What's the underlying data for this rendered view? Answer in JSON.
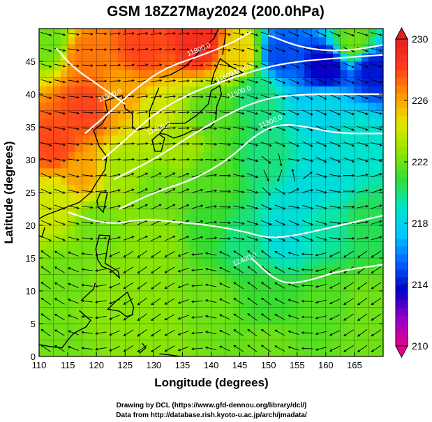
{
  "chart_data": {
    "type": "heatmap",
    "title": "GSM 18Z27May2024 (200.0hPa)",
    "xlabel": "Longitude (degrees)",
    "ylabel": "Latitude  (degrees)",
    "xlim": [
      110,
      170
    ],
    "ylim": [
      0,
      50
    ],
    "xticks": [
      110,
      115,
      120,
      125,
      130,
      135,
      140,
      145,
      150,
      155,
      160,
      165
    ],
    "yticks": [
      0,
      5,
      10,
      15,
      20,
      25,
      30,
      35,
      40,
      45
    ],
    "grid": true,
    "colorbar": {
      "range": [
        210,
        230
      ],
      "ticks": [
        210,
        214,
        218,
        222,
        226,
        230
      ],
      "colors": [
        "#e8008c",
        "#9400c8",
        "#0000c8",
        "#0064ff",
        "#00c8ff",
        "#00e6c8",
        "#32dc32",
        "#96e600",
        "#e6e600",
        "#ff9600",
        "#ff3c1e",
        "#e61e1e"
      ],
      "placement": "right"
    },
    "field_samples": [
      {
        "lon": 112,
        "lat": 48,
        "value": 222
      },
      {
        "lon": 118,
        "lat": 46,
        "value": 227
      },
      {
        "lon": 128,
        "lat": 47,
        "value": 228
      },
      {
        "lon": 138,
        "lat": 48,
        "value": 229
      },
      {
        "lon": 145,
        "lat": 46,
        "value": 225
      },
      {
        "lon": 152,
        "lat": 46,
        "value": 215
      },
      {
        "lon": 160,
        "lat": 44,
        "value": 213.5
      },
      {
        "lon": 168,
        "lat": 44,
        "value": 214
      },
      {
        "lon": 165,
        "lat": 48,
        "value": 222
      },
      {
        "lon": 160,
        "lat": 38,
        "value": 218
      },
      {
        "lon": 165,
        "lat": 33,
        "value": 219
      },
      {
        "lon": 118,
        "lat": 38,
        "value": 228
      },
      {
        "lon": 113,
        "lat": 32,
        "value": 228
      },
      {
        "lon": 117,
        "lat": 28,
        "value": 226
      },
      {
        "lon": 113,
        "lat": 24,
        "value": 224
      },
      {
        "lon": 125,
        "lat": 40,
        "value": 226
      },
      {
        "lon": 130,
        "lat": 37,
        "value": 224
      },
      {
        "lon": 135,
        "lat": 33,
        "value": 223
      },
      {
        "lon": 140,
        "lat": 37,
        "value": 221.5
      },
      {
        "lon": 148,
        "lat": 40,
        "value": 220
      },
      {
        "lon": 125,
        "lat": 28,
        "value": 223
      },
      {
        "lon": 130,
        "lat": 25,
        "value": 222
      },
      {
        "lon": 140,
        "lat": 27,
        "value": 221.5
      },
      {
        "lon": 150,
        "lat": 30,
        "value": 220
      },
      {
        "lon": 156,
        "lat": 25,
        "value": 218.5
      },
      {
        "lon": 160,
        "lat": 28,
        "value": 218.5
      },
      {
        "lon": 153,
        "lat": 19,
        "value": 218.5
      },
      {
        "lon": 160,
        "lat": 20,
        "value": 219.5
      },
      {
        "lon": 167,
        "lat": 20,
        "value": 220.5
      },
      {
        "lon": 145,
        "lat": 18,
        "value": 220
      },
      {
        "lon": 140,
        "lat": 20,
        "value": 221
      },
      {
        "lon": 130,
        "lat": 18,
        "value": 222.5
      },
      {
        "lon": 120,
        "lat": 20,
        "value": 222
      },
      {
        "lon": 115,
        "lat": 12,
        "value": 222
      },
      {
        "lon": 122,
        "lat": 8,
        "value": 222.5
      },
      {
        "lon": 130,
        "lat": 8,
        "value": 222.5
      },
      {
        "lon": 140,
        "lat": 8,
        "value": 222
      },
      {
        "lon": 150,
        "lat": 8,
        "value": 221
      },
      {
        "lon": 160,
        "lat": 8,
        "value": 221.5
      },
      {
        "lon": 167,
        "lat": 8,
        "value": 222
      },
      {
        "lon": 113,
        "lat": 2,
        "value": 222
      },
      {
        "lon": 130,
        "lat": 2,
        "value": 222.5
      },
      {
        "lon": 150,
        "lat": 2,
        "value": 222
      },
      {
        "lon": 167,
        "lat": 2,
        "value": 222
      }
    ],
    "contour_lines": [
      [
        [
          118,
          34
        ],
        [
          122,
          37
        ],
        [
          127,
          41
        ],
        [
          132,
          44
        ],
        [
          137,
          45.5
        ],
        [
          143,
          47.5
        ],
        [
          147,
          49.5
        ]
      ],
      [
        [
          121,
          30
        ],
        [
          125,
          33
        ],
        [
          130,
          37
        ],
        [
          136,
          40
        ],
        [
          142,
          42
        ],
        [
          149,
          44
        ],
        [
          155,
          45
        ],
        [
          162,
          45.5
        ],
        [
          170,
          46
        ]
      ],
      [
        [
          123,
          27
        ],
        [
          130,
          30
        ],
        [
          137,
          34
        ],
        [
          144,
          37.5
        ],
        [
          150,
          39.5
        ],
        [
          157,
          40
        ],
        [
          163,
          40
        ],
        [
          170,
          40
        ]
      ],
      [
        [
          124,
          22.5
        ],
        [
          130,
          25
        ],
        [
          137,
          27
        ],
        [
          143,
          30
        ],
        [
          148,
          34
        ],
        [
          152,
          35.5
        ],
        [
          157,
          35
        ],
        [
          162,
          34
        ],
        [
          170,
          34
        ]
      ],
      [
        [
          115,
          22
        ],
        [
          122,
          20
        ],
        [
          128,
          21
        ],
        [
          134,
          20.5
        ],
        [
          140,
          20
        ],
        [
          146,
          19
        ],
        [
          150,
          18
        ],
        [
          155,
          18.5
        ],
        [
          160,
          19.5
        ],
        [
          165,
          20.5
        ],
        [
          170,
          21.5
        ]
      ],
      [
        [
          147,
          15
        ],
        [
          152,
          11
        ],
        [
          157,
          11.5
        ],
        [
          162,
          13
        ],
        [
          170,
          14
        ]
      ],
      [
        [
          113,
          47
        ],
        [
          116,
          44
        ],
        [
          121,
          41
        ],
        [
          125,
          38.5
        ]
      ],
      [
        [
          150,
          49
        ],
        [
          156,
          47
        ],
        [
          163,
          46.5
        ],
        [
          170,
          47.5
        ]
      ]
    ],
    "contour_labels": [
      {
        "text": "11800.0",
        "lon": 138,
        "lat": 46.5
      },
      {
        "text": "11700.0",
        "lon": 145.5,
        "lat": 43.5
      },
      {
        "text": "11600.0",
        "lon": 143,
        "lat": 42.5
      },
      {
        "text": "11500.0",
        "lon": 122.5,
        "lat": 39.5
      },
      {
        "text": "11500.0",
        "lon": 145,
        "lat": 40
      },
      {
        "text": "11400.0",
        "lon": 131,
        "lat": 34.5
      },
      {
        "text": "11300.0",
        "lon": 150.5,
        "lat": 35.5
      },
      {
        "text": "12400.0",
        "lon": 146,
        "lat": 14.5
      }
    ],
    "coastlines": [
      [
        [
          121.5,
          39
        ],
        [
          122,
          37
        ],
        [
          121,
          35.5
        ],
        [
          119.5,
          34.5
        ],
        [
          120.5,
          32
        ],
        [
          121.8,
          30.5
        ],
        [
          121.5,
          28.5
        ],
        [
          120,
          26.5
        ],
        [
          119,
          25
        ],
        [
          117,
          23.5
        ],
        [
          114,
          22.5
        ],
        [
          111,
          21.5
        ],
        [
          110,
          21
        ]
      ],
      [
        [
          120.7,
          25
        ],
        [
          121.9,
          25
        ],
        [
          121.2,
          22
        ],
        [
          120.3,
          22.8
        ],
        [
          120.1,
          23.7
        ],
        [
          120.7,
          25
        ]
      ],
      [
        [
          130.9,
          41
        ],
        [
          129.3,
          37.5
        ],
        [
          129.2,
          35
        ],
        [
          127,
          34.5
        ],
        [
          126.3,
          35
        ],
        [
          126.3,
          37
        ],
        [
          125,
          37.8
        ],
        [
          124.5,
          39.8
        ],
        [
          121.5,
          39
        ]
      ],
      [
        [
          130.9,
          33.9
        ],
        [
          131.9,
          33.3
        ],
        [
          131.3,
          31.3
        ],
        [
          130.2,
          31.3
        ],
        [
          129.7,
          33
        ],
        [
          130.9,
          33.9
        ]
      ],
      [
        [
          131,
          34
        ],
        [
          132.5,
          35.5
        ],
        [
          135.5,
          35.6
        ],
        [
          137.5,
          36.8
        ],
        [
          139.5,
          38.5
        ],
        [
          140,
          40.5
        ],
        [
          141.5,
          41.3
        ],
        [
          141.8,
          40
        ],
        [
          141,
          38.2
        ],
        [
          140.8,
          36
        ],
        [
          140,
          35
        ],
        [
          138.5,
          34.6
        ],
        [
          136.8,
          34.5
        ],
        [
          135.2,
          33.8
        ],
        [
          133.5,
          33.3
        ],
        [
          132,
          33.9
        ],
        [
          131,
          34
        ]
      ],
      [
        [
          140,
          41.5
        ],
        [
          140.5,
          43.2
        ],
        [
          141.6,
          45.4
        ],
        [
          143.5,
          44.2
        ],
        [
          145.5,
          43.3
        ],
        [
          144,
          42.9
        ],
        [
          141.2,
          41.8
        ],
        [
          140,
          41.5
        ]
      ],
      [
        [
          142,
          46
        ],
        [
          142.5,
          49
        ],
        [
          142.5,
          50
        ]
      ],
      [
        [
          131,
          42.5
        ],
        [
          133,
          43
        ],
        [
          135.5,
          44.2
        ],
        [
          138,
          46.5
        ],
        [
          140.5,
          48.5
        ],
        [
          141.3,
          50
        ]
      ],
      [
        [
          120.5,
          18.5
        ],
        [
          122.3,
          18.4
        ],
        [
          121.8,
          16
        ],
        [
          121.5,
          14.2
        ],
        [
          123.8,
          13
        ],
        [
          124,
          12
        ],
        [
          122.5,
          13.2
        ],
        [
          121,
          13.7
        ],
        [
          120.2,
          14.8
        ],
        [
          119.9,
          16.4
        ],
        [
          120.5,
          18.5
        ]
      ],
      [
        [
          125.4,
          9.8
        ],
        [
          126.5,
          7.5
        ],
        [
          126.2,
          6.3
        ],
        [
          125.2,
          6.1
        ],
        [
          124,
          6.9
        ],
        [
          122,
          7.2
        ],
        [
          123.5,
          8.5
        ],
        [
          125.4,
          9.8
        ]
      ],
      [
        [
          117,
          7
        ],
        [
          119,
          5.5
        ],
        [
          118.2,
          4.5
        ],
        [
          117.5,
          4.2
        ],
        [
          116,
          3.5
        ],
        [
          115,
          2.5
        ],
        [
          114,
          1.3
        ],
        [
          112,
          1.5
        ],
        [
          110,
          1.8
        ]
      ],
      [
        [
          117.3,
          8.5
        ],
        [
          119.5,
          10.3
        ],
        [
          119.8,
          11.2
        ]
      ],
      [
        [
          128,
          2
        ],
        [
          128.6,
          1.3
        ],
        [
          127.5,
          0.5
        ]
      ],
      [
        [
          131,
          0.4
        ],
        [
          133,
          0.2
        ],
        [
          134.5,
          0
        ]
      ],
      [
        [
          110,
          20
        ],
        [
          109.5,
          18.7
        ],
        [
          110.5,
          18.2
        ],
        [
          111,
          19.7
        ]
      ]
    ]
  },
  "footer": {
    "line1": "Drawing by DCL (https://www.gfd-dennou.org/library/dcl/)",
    "line2": "Data from http://database.rish.kyoto-u.ac.jp/arch/jmadata/"
  }
}
